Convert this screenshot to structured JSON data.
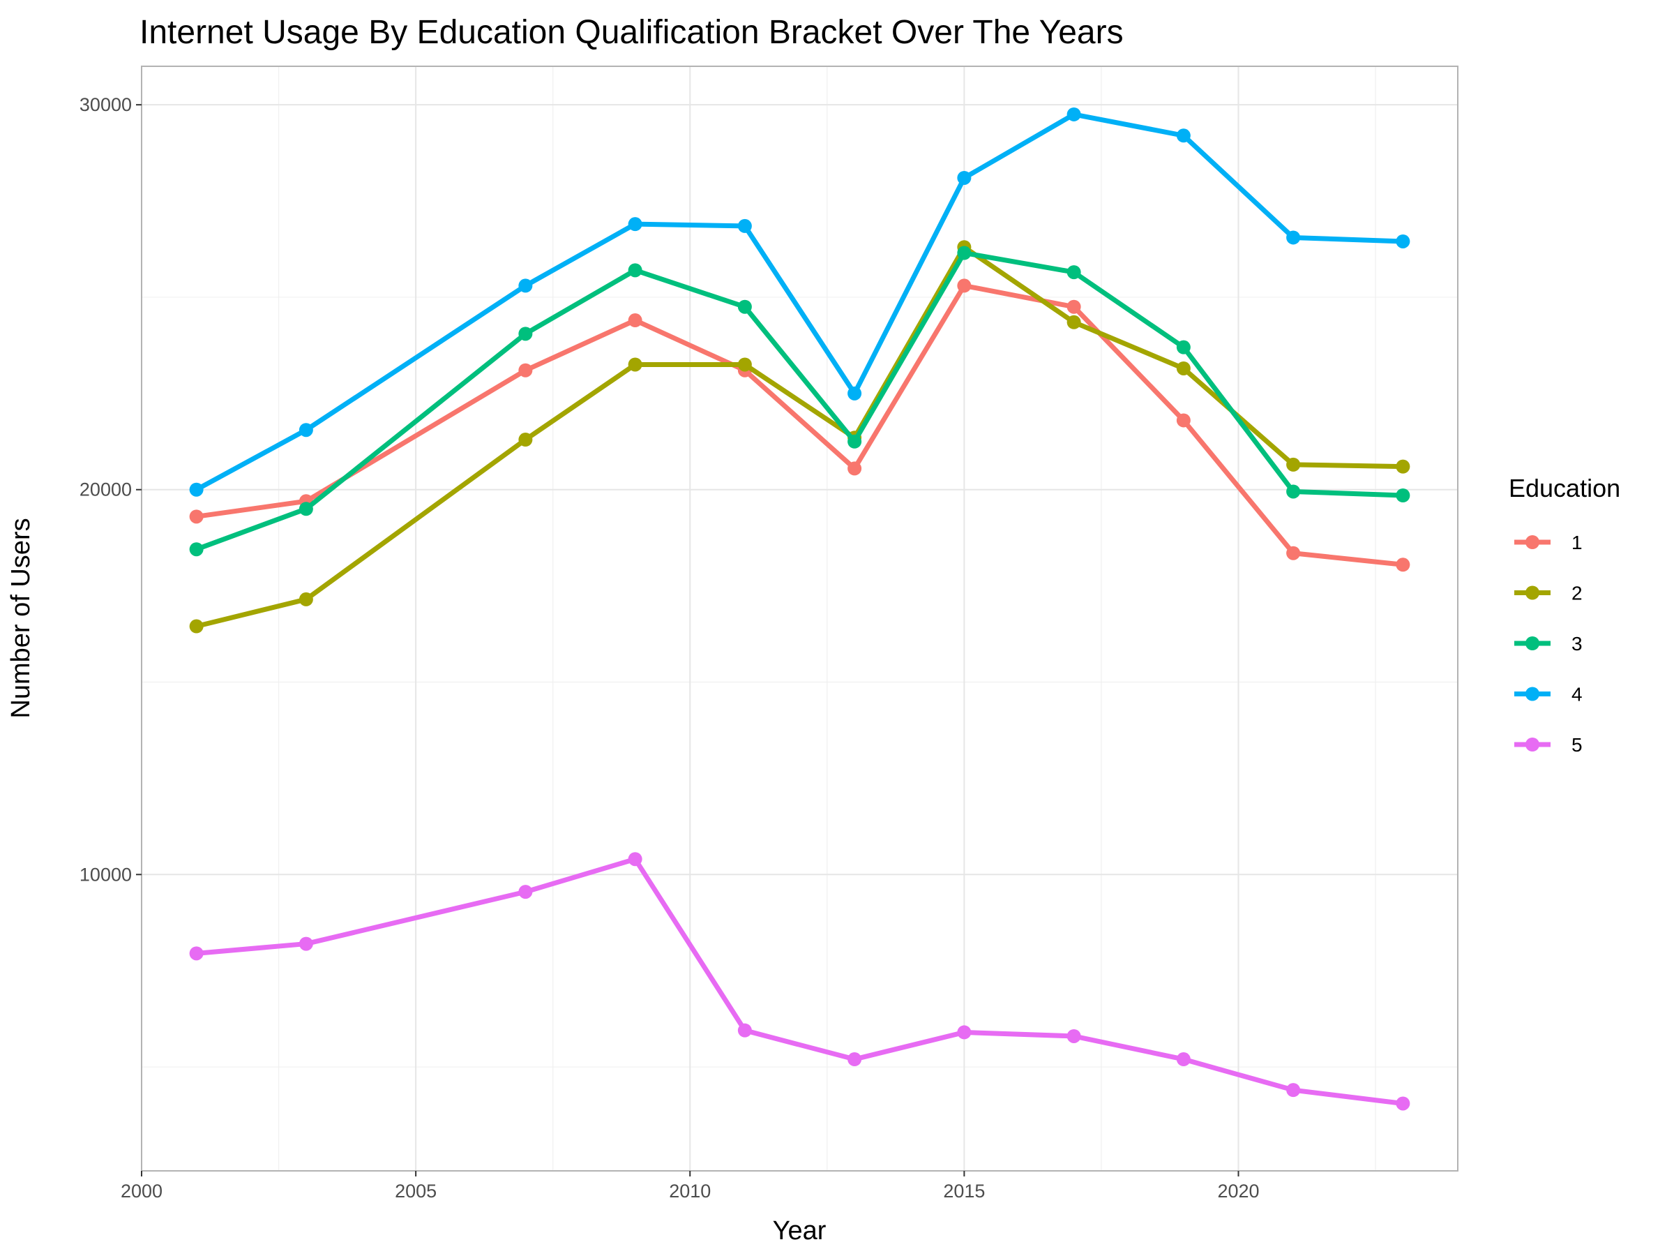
{
  "chart_data": {
    "type": "line",
    "title": "Internet Usage By Education Qualification Bracket Over The Years",
    "xlabel": "Year",
    "ylabel": "Number of Users",
    "x": [
      2001,
      2003,
      2007,
      2009,
      2011,
      2013,
      2015,
      2017,
      2019,
      2021,
      2023
    ],
    "xlim": [
      2000,
      2024
    ],
    "ylim": [
      2300,
      31000
    ],
    "x_ticks": [
      2000,
      2005,
      2010,
      2015,
      2020
    ],
    "y_ticks": [
      10000,
      20000,
      30000
    ],
    "x_tick_labels": [
      "2000",
      "2005",
      "2010",
      "2015",
      "2020"
    ],
    "y_tick_labels": [
      "10000",
      "20000",
      "30000"
    ],
    "grid": true,
    "legend": {
      "title": "Education",
      "placement": "right"
    },
    "series": [
      {
        "name": "1",
        "color": "#F8766D",
        "values": [
          19300,
          19700,
          23100,
          24400,
          23100,
          20550,
          25300,
          24750,
          21800,
          18350,
          18050
        ]
      },
      {
        "name": "2",
        "color": "#A3A500",
        "values": [
          16450,
          17150,
          21300,
          23250,
          23250,
          21350,
          26300,
          24350,
          23150,
          20650,
          20600
        ]
      },
      {
        "name": "3",
        "color": "#00BF7D",
        "values": [
          18450,
          19500,
          24050,
          25700,
          24750,
          21250,
          26150,
          25650,
          23700,
          19950,
          19850
        ]
      },
      {
        "name": "4",
        "color": "#00B0F6",
        "values": [
          20000,
          21550,
          25300,
          26900,
          26850,
          22500,
          28100,
          29750,
          29200,
          26550,
          26450
        ]
      },
      {
        "name": "5",
        "color": "#E76BF3",
        "values": [
          7950,
          8200,
          9550,
          10400,
          5950,
          5200,
          5900,
          5800,
          5200,
          4400,
          4050
        ]
      }
    ]
  }
}
